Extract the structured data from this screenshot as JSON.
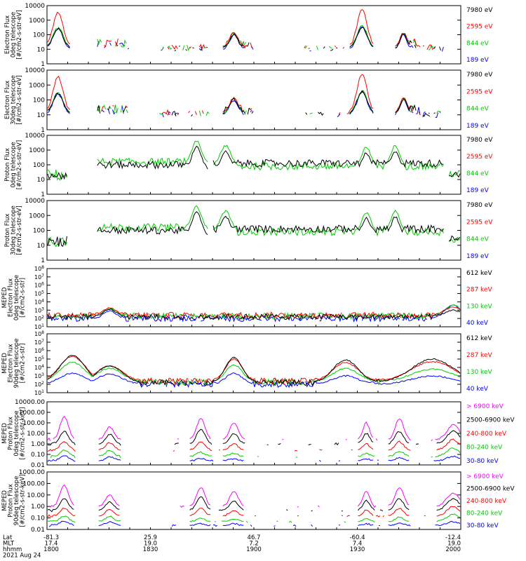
{
  "chart_data": [
    {
      "type": "line",
      "ylog": true,
      "ylabel": [
        "Electron Flux",
        "0deg telescope",
        "[#/cm2-s-str-eV]"
      ],
      "ylim": [
        1,
        10000
      ],
      "yticks": [
        "1",
        "10",
        "100",
        "1000",
        "10000"
      ],
      "legend": [
        {
          "label": "7980 eV",
          "color": "#000000"
        },
        {
          "label": "2595 eV",
          "color": "#ff0000"
        },
        {
          "label": "844 eV",
          "color": "#00cc00"
        },
        {
          "label": "189 eV",
          "color": "#0000ff"
        }
      ]
    },
    {
      "type": "line",
      "ylog": true,
      "ylabel": [
        "Electron Flux",
        "30deg telescope",
        "[#/cm2-s-str-eV]"
      ],
      "ylim": [
        1,
        10000
      ],
      "yticks": [
        "1",
        "10",
        "100",
        "1000",
        "10000"
      ],
      "legend": [
        {
          "label": "7980 eV",
          "color": "#000000"
        },
        {
          "label": "2595 eV",
          "color": "#ff0000"
        },
        {
          "label": "844 eV",
          "color": "#00cc00"
        },
        {
          "label": "189 eV",
          "color": "#0000ff"
        }
      ]
    },
    {
      "type": "line",
      "ylog": true,
      "ylabel": [
        "Proton Flux",
        "0deg telescope",
        "[#/cm2-s-str-eV]"
      ],
      "ylim": [
        1,
        10000
      ],
      "yticks": [
        "1",
        "10",
        "100",
        "1000",
        "10000"
      ],
      "legend": [
        {
          "label": "7980 eV",
          "color": "#000000"
        },
        {
          "label": "2595 eV",
          "color": "#ff0000"
        },
        {
          "label": "844 eV",
          "color": "#00cc00"
        },
        {
          "label": "189 eV",
          "color": "#0000ff"
        }
      ]
    },
    {
      "type": "line",
      "ylog": true,
      "ylabel": [
        "Proton Flux",
        "30deg telescope",
        "[#/cm2-s-str-eV]"
      ],
      "ylim": [
        1,
        10000
      ],
      "yticks": [
        "1",
        "10",
        "100",
        "1000",
        "10000"
      ],
      "legend": [
        {
          "label": "7980 eV",
          "color": "#000000"
        },
        {
          "label": "2595 eV",
          "color": "#ff0000"
        },
        {
          "label": "844 eV",
          "color": "#00cc00"
        },
        {
          "label": "189 eV",
          "color": "#0000ff"
        }
      ]
    },
    {
      "type": "line",
      "ylog": true,
      "ylabel": [
        "MEPED",
        "Electron Flux",
        "0deg telescope",
        "[#/cm2-s-str]"
      ],
      "ylim": [
        10,
        100000000
      ],
      "yticks": [
        "10^1",
        "10^2",
        "10^3",
        "10^4",
        "10^5",
        "10^6",
        "10^7",
        "10^8"
      ],
      "legend": [
        {
          "label": "612 keV",
          "color": "#000000"
        },
        {
          "label": "287 keV",
          "color": "#ff0000"
        },
        {
          "label": "130 keV",
          "color": "#00cc00"
        },
        {
          "label": "40 keV",
          "color": "#0000ff"
        }
      ]
    },
    {
      "type": "line",
      "ylog": true,
      "ylabel": [
        "MEPED",
        "Electron Flux",
        "90deg telescope",
        "[#/cm2-s-str]"
      ],
      "ylim": [
        10,
        100000000
      ],
      "yticks": [
        "10^1",
        "10^2",
        "10^3",
        "10^4",
        "10^5",
        "10^6",
        "10^7",
        "10^8"
      ],
      "legend": [
        {
          "label": "612 keV",
          "color": "#000000"
        },
        {
          "label": "287 keV",
          "color": "#ff0000"
        },
        {
          "label": "130 keV",
          "color": "#00cc00"
        },
        {
          "label": "40 keV",
          "color": "#0000ff"
        }
      ]
    },
    {
      "type": "line",
      "ylog": true,
      "ylabel": [
        "MEPED",
        "Proton Flux",
        "0deg telescope",
        "[#/cm2-s-str-keV]"
      ],
      "ylim": [
        0.01,
        10000
      ],
      "yticks": [
        "0.01",
        "0.10",
        "1.00",
        "10.00",
        "100.00",
        "1000.00",
        "10000.00"
      ],
      "legend": [
        {
          "label": "> 6900 keV",
          "color": "#ff00ff"
        },
        {
          "label": "2500-6900 keV",
          "color": "#000000"
        },
        {
          "label": "240-800 keV",
          "color": "#ff0000"
        },
        {
          "label": "80-240 keV",
          "color": "#00cc00"
        },
        {
          "label": "30-80 keV",
          "color": "#0000ff"
        }
      ]
    },
    {
      "type": "line",
      "ylog": true,
      "ylabel": [
        "MEPED",
        "Proton Flux",
        "90deg telescope",
        "[#/cm2-s-str-keV]"
      ],
      "ylim": [
        0.01,
        10000
      ],
      "yticks": [
        "0.01",
        "0.10",
        "1.00",
        "10.00",
        "100.00",
        "1000.00"
      ],
      "legend": [
        {
          "label": "> 6900 keV",
          "color": "#ff00ff"
        },
        {
          "label": "2500-6900 keV",
          "color": "#000000"
        },
        {
          "label": "240-800 keV",
          "color": "#ff0000"
        },
        {
          "label": "80-240 keV",
          "color": "#00cc00"
        },
        {
          "label": "30-80 keV",
          "color": "#0000ff"
        }
      ]
    }
  ],
  "xaxis": {
    "row_labels": [
      "Lat",
      "MLT",
      "hhmm"
    ],
    "ticks": [
      {
        "lat": "-81.3",
        "mlt": "17.4",
        "hhmm": "1800"
      },
      {
        "lat": "25.9",
        "mlt": "19.0",
        "hhmm": "1830"
      },
      {
        "lat": "46.7",
        "mlt": "7.2",
        "hhmm": "1900"
      },
      {
        "lat": "-60.4",
        "mlt": "7.4",
        "hhmm": "1930"
      },
      {
        "lat": "-12.4",
        "mlt": "19.0",
        "hhmm": "2000"
      }
    ],
    "date": "2021 Aug 24"
  }
}
